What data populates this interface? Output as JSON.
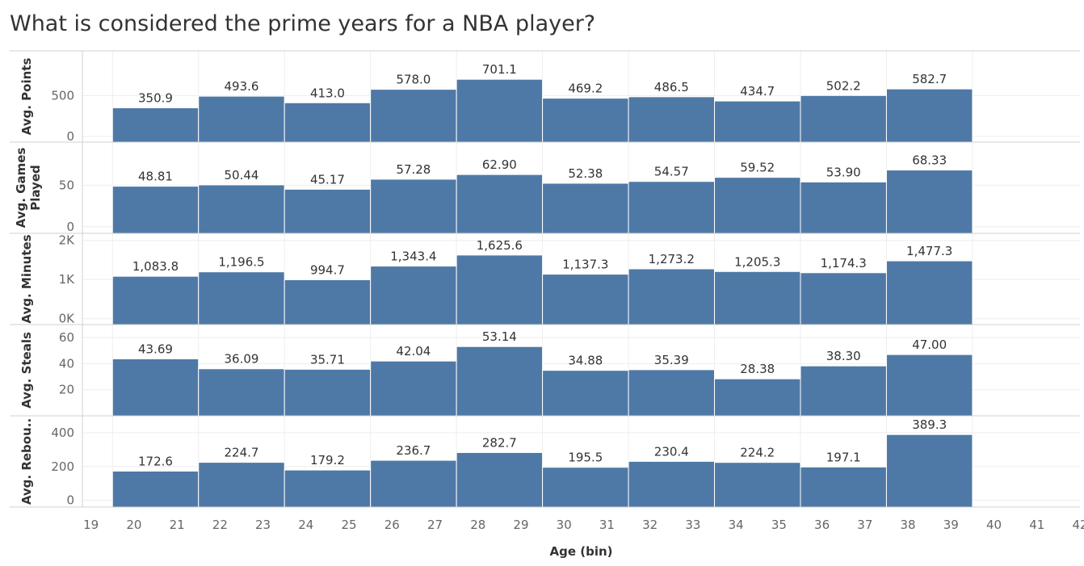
{
  "title": "What is considered the prime years for a NBA player?",
  "colors": {
    "bar": "#4e79a7",
    "grid": "#eeeeee",
    "divider": "#d0d0d0"
  },
  "chart_data": {
    "type": "bar",
    "title": "What is considered the prime years for a NBA player?",
    "xlabel": "Age (bin)",
    "x_ticks": [
      "19",
      "20",
      "21",
      "22",
      "23",
      "24",
      "25",
      "26",
      "27",
      "28",
      "29",
      "30",
      "31",
      "32",
      "33",
      "34",
      "35",
      "36",
      "37",
      "38",
      "39",
      "40",
      "41",
      "42"
    ],
    "xlim": [
      18.8,
      42
    ],
    "bins": [
      [
        19.5,
        21.5
      ],
      [
        21.5,
        23.5
      ],
      [
        23.5,
        25.5
      ],
      [
        25.5,
        27.5
      ],
      [
        27.5,
        29.5
      ],
      [
        29.5,
        31.5
      ],
      [
        31.5,
        33.5
      ],
      [
        33.5,
        35.5
      ],
      [
        35.5,
        37.5
      ],
      [
        37.5,
        39.5
      ]
    ],
    "bin_ticks": [
      20,
      22,
      24,
      26,
      28,
      30,
      32,
      34,
      36,
      38,
      40
    ],
    "grid": true,
    "panels": [
      {
        "ylabel": "Avg. Points",
        "ylim": [
          -70,
          1050
        ],
        "yticks": [
          "0",
          "500"
        ],
        "ytick_values": [
          0,
          500
        ],
        "values": [
          350.9,
          493.6,
          413.0,
          578.0,
          701.1,
          469.2,
          486.5,
          434.7,
          502.2,
          582.7
        ],
        "labels": [
          "350.9",
          "493.6",
          "413.0",
          "578.0",
          "701.1",
          "469.2",
          "486.5",
          "434.7",
          "502.2",
          "582.7"
        ]
      },
      {
        "ylabel": "Avg. Games Played",
        "ylabel_lines": [
          "Avg. Games",
          "Played"
        ],
        "ylim": [
          -8,
          102
        ],
        "yticks": [
          "0",
          "50"
        ],
        "ytick_values": [
          0,
          50
        ],
        "values": [
          48.81,
          50.44,
          45.17,
          57.28,
          62.9,
          52.38,
          54.57,
          59.52,
          53.9,
          68.33
        ],
        "labels": [
          "48.81",
          "50.44",
          "45.17",
          "57.28",
          "62.90",
          "52.38",
          "54.57",
          "59.52",
          "53.90",
          "68.33"
        ]
      },
      {
        "ylabel": "Avg. Minutes",
        "ylim": [
          -150,
          2180
        ],
        "yticks": [
          "0K",
          "1K",
          "2K"
        ],
        "ytick_values": [
          0,
          1000,
          2000
        ],
        "values": [
          1083.8,
          1196.5,
          994.7,
          1343.4,
          1625.6,
          1137.3,
          1273.2,
          1205.3,
          1174.3,
          1477.3
        ],
        "labels": [
          "1,083.8",
          "1,196.5",
          "994.7",
          "1,343.4",
          "1,625.6",
          "1,137.3",
          "1,273.2",
          "1,205.3",
          "1,174.3",
          "1,477.3"
        ]
      },
      {
        "ylabel": "Avg. Steals",
        "ylim": [
          0,
          70
        ],
        "yticks": [
          "20",
          "40",
          "60"
        ],
        "ytick_values": [
          20,
          40,
          60
        ],
        "values": [
          43.69,
          36.09,
          35.71,
          42.04,
          53.14,
          34.88,
          35.39,
          28.38,
          38.3,
          47.0
        ],
        "labels": [
          "43.69",
          "36.09",
          "35.71",
          "42.04",
          "53.14",
          "34.88",
          "35.39",
          "28.38",
          "38.30",
          "47.00"
        ]
      },
      {
        "ylabel": "Avg. Rebou..",
        "ylim": [
          -40,
          500
        ],
        "yticks": [
          "0",
          "200",
          "400"
        ],
        "ytick_values": [
          0,
          200,
          400
        ],
        "values": [
          172.6,
          224.7,
          179.2,
          236.7,
          282.7,
          195.5,
          230.4,
          224.2,
          197.1,
          389.3
        ],
        "labels": [
          "172.6",
          "224.7",
          "179.2",
          "236.7",
          "282.7",
          "195.5",
          "230.4",
          "224.2",
          "197.1",
          "389.3"
        ]
      }
    ]
  }
}
